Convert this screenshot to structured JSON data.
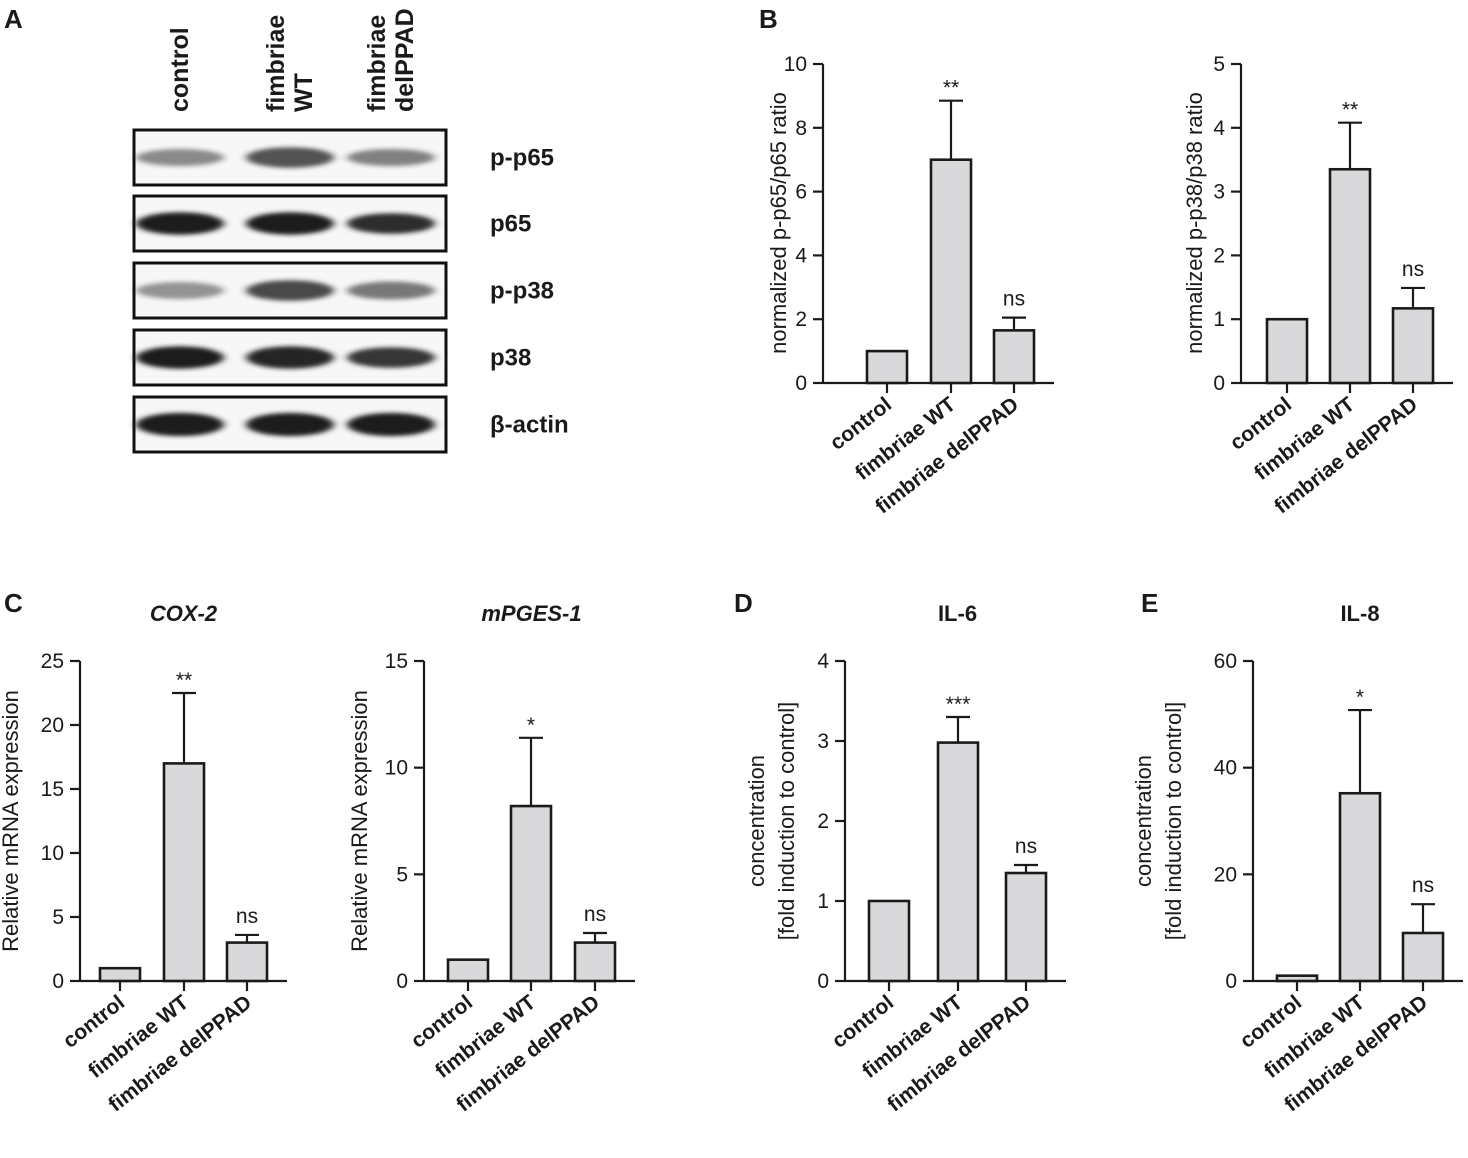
{
  "panels": {
    "A": "A",
    "B": "B",
    "C": "C",
    "D": "D",
    "E": "E"
  },
  "western_blot": {
    "lanes": [
      [
        "control"
      ],
      [
        "fimbriae",
        "WT"
      ],
      [
        "fimbriae",
        "delPPAD"
      ]
    ],
    "bands": [
      {
        "label": "p-p65",
        "intensity": [
          0.35,
          0.7,
          0.4
        ],
        "thickness": [
          0.5,
          0.7,
          0.5
        ]
      },
      {
        "label": "p65",
        "intensity": [
          1.0,
          1.0,
          0.9
        ],
        "thickness": [
          0.8,
          0.8,
          0.7
        ]
      },
      {
        "label": "p-p38",
        "intensity": [
          0.3,
          0.75,
          0.45
        ],
        "thickness": [
          0.5,
          0.7,
          0.55
        ]
      },
      {
        "label": "p38",
        "intensity": [
          1.0,
          0.95,
          0.85
        ],
        "thickness": [
          0.8,
          0.8,
          0.7
        ]
      },
      {
        "label": "β-actin",
        "intensity": [
          1.0,
          1.0,
          1.0
        ],
        "thickness": [
          0.85,
          0.85,
          0.85
        ]
      }
    ]
  },
  "colors": {
    "bar_fill": "#d9d9db",
    "stroke": "#1a1a1a",
    "band": "#1f1f1f"
  },
  "chart_data": [
    {
      "type": "bar",
      "categories": [
        "control",
        "fimbriae WT",
        "fimbriae delPPAD"
      ],
      "values": [
        1.0,
        7.0,
        1.65
      ],
      "errors": [
        0,
        1.85,
        0.4
      ],
      "significance": [
        "",
        "**",
        "ns"
      ],
      "title": "",
      "ylabel": [
        "normalized p-p65/p65 ratio"
      ],
      "ylim": [
        0,
        10
      ],
      "yticks": [
        0,
        2,
        4,
        6,
        8,
        10
      ],
      "grid": false
    },
    {
      "type": "bar",
      "categories": [
        "control",
        "fimbriae WT",
        "fimbriae delPPAD"
      ],
      "values": [
        1.0,
        3.35,
        1.17
      ],
      "errors": [
        0,
        0.73,
        0.32
      ],
      "significance": [
        "",
        "**",
        "ns"
      ],
      "title": "",
      "ylabel": [
        "normalized p-p38/p38 ratio"
      ],
      "ylim": [
        0,
        5
      ],
      "yticks": [
        0,
        1,
        2,
        3,
        4,
        5
      ],
      "grid": false
    },
    {
      "type": "bar",
      "categories": [
        "control",
        "fimbriae WT",
        "fimbriae delPPAD"
      ],
      "values": [
        1.0,
        17.0,
        3.0
      ],
      "errors": [
        0,
        5.5,
        0.6
      ],
      "significance": [
        "",
        "**",
        "ns"
      ],
      "title": "COX-2",
      "title_italic": true,
      "ylabel": [
        "Relative mRNA expression"
      ],
      "ylim": [
        0,
        25
      ],
      "yticks": [
        0,
        5,
        10,
        15,
        20,
        25
      ],
      "grid": false
    },
    {
      "type": "bar",
      "categories": [
        "control",
        "fimbriae WT",
        "fimbriae delPPAD"
      ],
      "values": [
        1.0,
        8.2,
        1.8
      ],
      "errors": [
        0,
        3.2,
        0.45
      ],
      "significance": [
        "",
        "*",
        "ns"
      ],
      "title": "mPGES-1",
      "title_italic": true,
      "ylabel": [
        "Relative mRNA expression"
      ],
      "ylim": [
        0,
        15
      ],
      "yticks": [
        0,
        5,
        10,
        15
      ],
      "grid": false
    },
    {
      "type": "bar",
      "categories": [
        "control",
        "fimbriae WT",
        "fimbriae delPPAD"
      ],
      "values": [
        1.0,
        2.98,
        1.35
      ],
      "errors": [
        0,
        0.32,
        0.1
      ],
      "significance": [
        "",
        "***",
        "ns"
      ],
      "title": "IL-6",
      "title_italic": false,
      "ylabel": [
        "concentration",
        "[fold induction to control]"
      ],
      "ylim": [
        0,
        4
      ],
      "yticks": [
        0,
        1,
        2,
        3,
        4
      ],
      "grid": false
    },
    {
      "type": "bar",
      "categories": [
        "control",
        "fimbriae WT",
        "fimbriae delPPAD"
      ],
      "values": [
        1.0,
        35.2,
        9.0
      ],
      "errors": [
        0,
        15.6,
        5.4
      ],
      "significance": [
        "",
        "*",
        "ns"
      ],
      "title": "IL-8",
      "title_italic": false,
      "ylabel": [
        "concentration",
        "[fold induction to control]"
      ],
      "ylim": [
        0,
        60
      ],
      "yticks": [
        0,
        20,
        40,
        60
      ],
      "grid": false
    }
  ]
}
